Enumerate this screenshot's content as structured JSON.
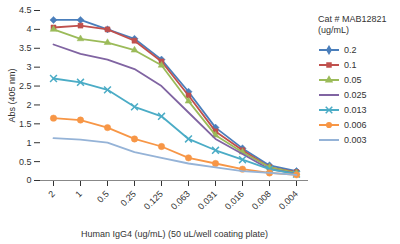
{
  "chart_data": {
    "type": "line",
    "x_label": "Human IgG4 (ug/mL) (50 uL/well coating plate)",
    "y_label": "Abs (405 nm)",
    "legend_title": "Cat # MAB12821\n(ug/mL)",
    "legend": "right",
    "grid": false,
    "categories": [
      "2",
      "1",
      "0.5",
      "0.25",
      "0.125",
      "0.063",
      "0.031",
      "0.016",
      "0.008",
      "0.004"
    ],
    "ylim": [
      0,
      4.5
    ],
    "yticks": [
      0,
      0.5,
      1,
      1.5,
      2,
      2.5,
      3,
      3.5,
      4,
      4.5
    ],
    "series": [
      {
        "name": "0.2",
        "color": "#4a7ebb",
        "marker": "diamond",
        "values": [
          4.25,
          4.25,
          4.0,
          3.75,
          3.2,
          2.35,
          1.4,
          0.85,
          0.4,
          0.25
        ]
      },
      {
        "name": "0.1",
        "color": "#c0504d",
        "marker": "square",
        "values": [
          4.05,
          4.1,
          4.0,
          3.7,
          3.15,
          2.25,
          1.3,
          0.8,
          0.35,
          0.22
        ]
      },
      {
        "name": "0.05",
        "color": "#9bbb59",
        "marker": "triangle",
        "values": [
          4.0,
          3.75,
          3.65,
          3.45,
          3.05,
          2.1,
          1.2,
          0.75,
          0.35,
          0.2
        ]
      },
      {
        "name": "0.025",
        "color": "#8064a2",
        "marker": "none",
        "values": [
          3.6,
          3.35,
          3.2,
          2.95,
          2.5,
          1.8,
          1.1,
          0.7,
          0.3,
          0.18
        ]
      },
      {
        "name": "0.013",
        "color": "#4bacc6",
        "marker": "times",
        "values": [
          2.7,
          2.6,
          2.4,
          1.95,
          1.7,
          1.1,
          0.8,
          0.55,
          0.3,
          0.17
        ]
      },
      {
        "name": "0.006",
        "color": "#f79646",
        "marker": "circle",
        "values": [
          1.65,
          1.6,
          1.4,
          1.1,
          0.9,
          0.6,
          0.45,
          0.3,
          0.2,
          0.15
        ]
      },
      {
        "name": "0.003",
        "color": "#95b3d7",
        "marker": "none",
        "values": [
          1.12,
          1.08,
          1.0,
          0.75,
          0.6,
          0.45,
          0.35,
          0.25,
          0.2,
          0.15
        ]
      }
    ]
  }
}
